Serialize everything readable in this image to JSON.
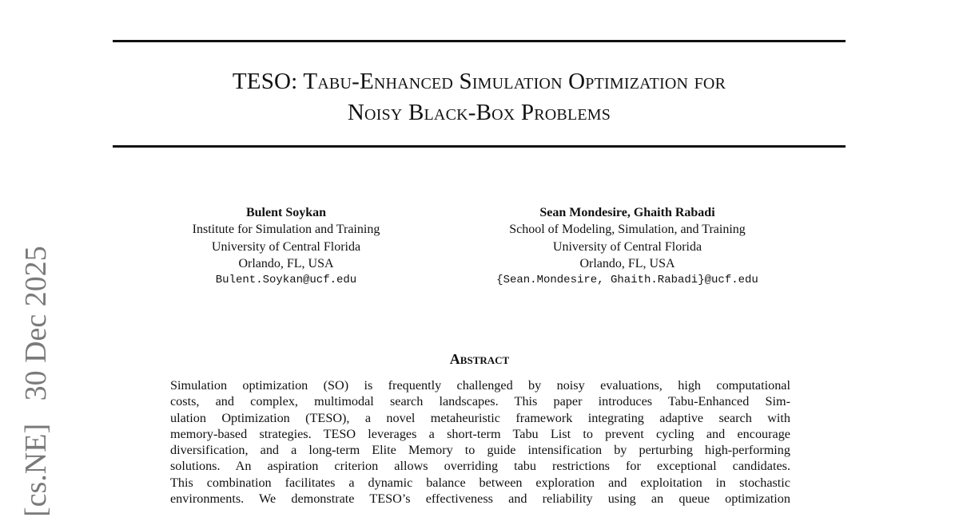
{
  "title": {
    "line1": "TESO: Tabu-Enhanced Simulation Optimization for",
    "line2": "Noisy Black-Box Problems"
  },
  "authors": [
    {
      "name": "Bulent Soykan",
      "affiliation": "Institute for Simulation and Training",
      "university": "University of Central Florida",
      "location": "Orlando, FL, USA",
      "email": "Bulent.Soykan@ucf.edu"
    },
    {
      "name": "Sean Mondesire, Ghaith Rabadi",
      "affiliation": "School of Modeling, Simulation, and Training",
      "university": "University of Central Florida",
      "location": "Orlando, FL, USA",
      "email": "{Sean.Mondesire, Ghaith.Rabadi}@ucf.edu"
    }
  ],
  "abstract": {
    "heading": "Abstract",
    "lines": [
      "Simulation optimization (SO) is frequently challenged by noisy evaluations, high computational",
      "costs, and complex, multimodal search landscapes.  This paper introduces Tabu-Enhanced Sim-",
      "ulation Optimization (TESO), a novel metaheuristic framework integrating adaptive search with",
      "memory-based strategies. TESO leverages a short-term Tabu List to prevent cycling and encourage",
      "diversification, and a long-term Elite Memory to guide intensification by perturbing high-performing",
      "solutions.  An aspiration criterion allows overriding tabu restrictions for exceptional candidates.",
      "This combination facilitates a dynamic balance between exploration and exploitation in stochastic",
      "environments.  We demonstrate TESO’s effectiveness and reliability using an queue optimization"
    ]
  },
  "arxiv_stamp": "[cs.NE]   30 Dec 2025"
}
